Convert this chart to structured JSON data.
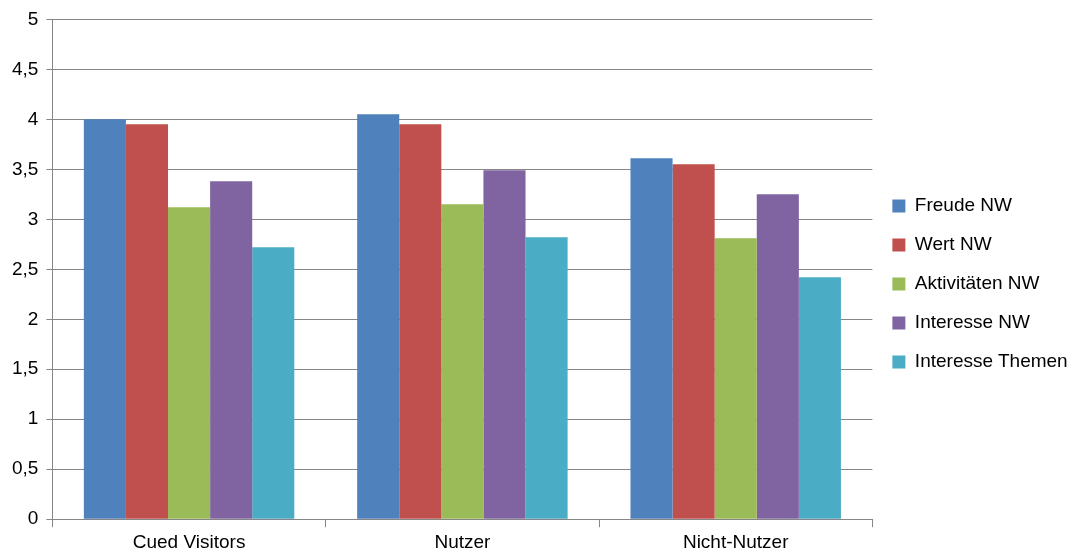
{
  "chart_data": {
    "type": "bar",
    "categories": [
      "Cued Visitors",
      "Nutzer",
      "Nicht-Nutzer"
    ],
    "series": [
      {
        "name": "Freude NW",
        "color": "#4f81bd",
        "values": [
          4.0,
          4.05,
          3.61
        ]
      },
      {
        "name": "Wert NW",
        "color": "#c0504d",
        "values": [
          3.95,
          3.95,
          3.55
        ]
      },
      {
        "name": "Aktivitäten NW",
        "color": "#9bbb59",
        "values": [
          3.12,
          3.15,
          2.81
        ]
      },
      {
        "name": "Interesse NW",
        "color": "#8064a2",
        "values": [
          3.38,
          3.49,
          3.25
        ]
      },
      {
        "name": "Interesse Themen",
        "color": "#4bacc6",
        "values": [
          2.72,
          2.82,
          2.42
        ]
      }
    ],
    "ylim": [
      0,
      5
    ],
    "yticks": [
      0,
      {
        "value": 0.5,
        "label": "0,5"
      },
      1,
      {
        "value": 1.5,
        "label": "1,5"
      },
      2,
      {
        "value": 2.5,
        "label": "2,5"
      },
      3,
      {
        "value": 3.5,
        "label": "3,5"
      },
      4,
      {
        "value": 4.5,
        "label": "4,5"
      },
      5
    ],
    "grid": "y",
    "legend": "right"
  }
}
